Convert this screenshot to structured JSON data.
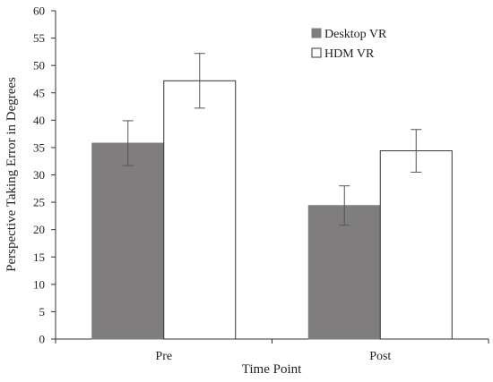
{
  "chart_data": {
    "type": "bar",
    "title": "",
    "xlabel": "Time Point",
    "ylabel": "Perspective Taking Error in Degrees",
    "categories": [
      "Pre",
      "Post"
    ],
    "ylim": [
      0,
      60
    ],
    "yticks": [
      0,
      5,
      10,
      15,
      20,
      25,
      30,
      35,
      40,
      45,
      50,
      55,
      60
    ],
    "grid": false,
    "legend_position": "top-right",
    "series": [
      {
        "name": "Desktop VR",
        "values": [
          35.8,
          24.4
        ],
        "error": [
          4.1,
          3.6
        ],
        "color": "#7f7d7e"
      },
      {
        "name": "HDM VR",
        "values": [
          47.2,
          34.4
        ],
        "error": [
          5.0,
          3.9
        ],
        "color": "#ffffff"
      }
    ]
  }
}
